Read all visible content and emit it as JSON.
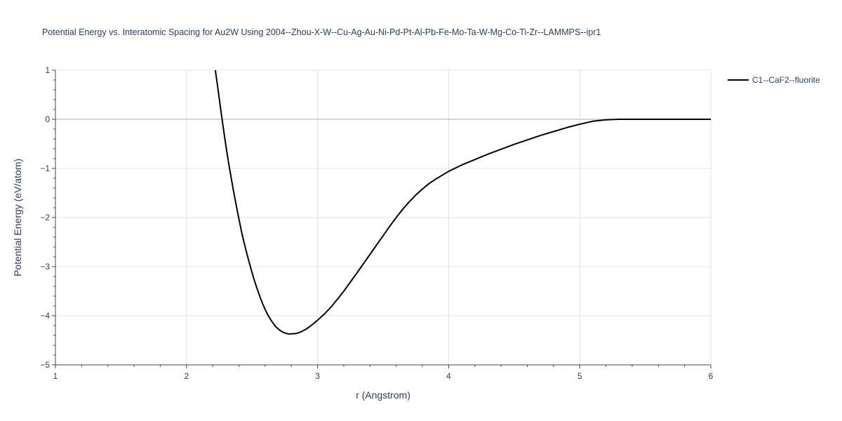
{
  "chart_data": {
    "type": "line",
    "title": "Potential Energy vs. Interatomic Spacing for Au2W Using 2004--Zhou-X-W--Cu-Ag-Au-Ni-Pd-Pt-Al-Pb-Fe-Mo-Ta-W-Mg-Co-Ti-Zr--LAMMPS--ipr1",
    "xlabel": "r (Angstrom)",
    "ylabel": "Potential Energy (eV/atom)",
    "xlim": [
      1,
      6
    ],
    "ylim": [
      -5,
      1
    ],
    "xticks": [
      1,
      2,
      3,
      4,
      5,
      6
    ],
    "yticks": [
      1,
      0,
      -1,
      -2,
      -3,
      -4,
      -5
    ],
    "grid": true,
    "legend_position": "top-right",
    "series": [
      {
        "name": "C1--CaF2--fluorite",
        "color": "#000000",
        "x": [
          2.22,
          2.24,
          2.26,
          2.28,
          2.3,
          2.32,
          2.34,
          2.36,
          2.38,
          2.4,
          2.42,
          2.44,
          2.46,
          2.48,
          2.5,
          2.52,
          2.54,
          2.56,
          2.58,
          2.6,
          2.62,
          2.64,
          2.66,
          2.68,
          2.7,
          2.72,
          2.74,
          2.76,
          2.78,
          2.8,
          2.84,
          2.88,
          2.92,
          2.96,
          3.0,
          3.05,
          3.1,
          3.15,
          3.2,
          3.3,
          3.4,
          3.5,
          3.55,
          3.6,
          3.65,
          3.7,
          3.75,
          3.8,
          3.85,
          3.9,
          4.0,
          4.1,
          4.2,
          4.3,
          4.4,
          4.5,
          4.6,
          4.7,
          4.8,
          4.9,
          5.0,
          5.1,
          5.2,
          5.3,
          5.4,
          5.6,
          5.8,
          6.0
        ],
        "y": [
          1.0,
          0.62,
          0.22,
          -0.16,
          -0.53,
          -0.87,
          -1.18,
          -1.48,
          -1.76,
          -2.03,
          -2.29,
          -2.52,
          -2.73,
          -2.93,
          -3.12,
          -3.3,
          -3.46,
          -3.61,
          -3.75,
          -3.87,
          -3.98,
          -4.07,
          -4.15,
          -4.22,
          -4.27,
          -4.31,
          -4.34,
          -4.36,
          -4.37,
          -4.37,
          -4.36,
          -4.32,
          -4.26,
          -4.18,
          -4.09,
          -3.97,
          -3.83,
          -3.67,
          -3.5,
          -3.13,
          -2.75,
          -2.37,
          -2.18,
          -2.0,
          -1.83,
          -1.68,
          -1.54,
          -1.42,
          -1.31,
          -1.22,
          -1.06,
          -0.93,
          -0.82,
          -0.71,
          -0.61,
          -0.51,
          -0.42,
          -0.33,
          -0.25,
          -0.17,
          -0.1,
          -0.04,
          -0.01,
          0.0,
          0.0,
          0.0,
          0.0,
          0.0
        ]
      }
    ]
  }
}
